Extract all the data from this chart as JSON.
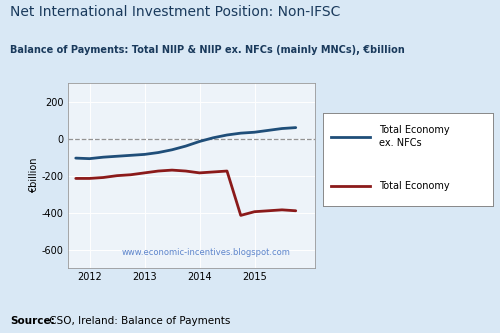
{
  "title": "Net International Investment Position: Non-IFSC",
  "subtitle": "Balance of Payments: Total NIIP & NIIP ex. NFCs (mainly MNCs), €billion",
  "ylabel": "€billion",
  "watermark": "www.economic-incentives.blogspot.com",
  "background_color": "#d9e8f5",
  "plot_bg_color": "#edf3f9",
  "ylim": [
    -700,
    300
  ],
  "yticks": [
    -600,
    -400,
    -200,
    0,
    200
  ],
  "ex_nfcs": {
    "x": [
      2011.75,
      2012.0,
      2012.25,
      2012.5,
      2012.75,
      2013.0,
      2013.25,
      2013.5,
      2013.75,
      2014.0,
      2014.25,
      2014.5,
      2014.75,
      2015.0,
      2015.25,
      2015.5,
      2015.75
    ],
    "y": [
      -105,
      -108,
      -100,
      -95,
      -90,
      -85,
      -75,
      -60,
      -40,
      -15,
      5,
      20,
      30,
      35,
      45,
      55,
      60
    ],
    "color": "#1f4e79",
    "label": "Total Economy\nex. NFCs",
    "linewidth": 2.0
  },
  "total": {
    "x": [
      2011.75,
      2012.0,
      2012.25,
      2012.5,
      2012.75,
      2013.0,
      2013.25,
      2013.5,
      2013.75,
      2014.0,
      2014.25,
      2014.5,
      2014.75,
      2015.0,
      2015.25,
      2015.5,
      2015.75
    ],
    "y": [
      -215,
      -215,
      -210,
      -200,
      -195,
      -185,
      -175,
      -170,
      -175,
      -185,
      -180,
      -175,
      -415,
      -395,
      -390,
      -385,
      -390
    ],
    "color": "#8b1a1a",
    "label": "Total Economy",
    "linewidth": 2.0
  },
  "xticks": [
    2012,
    2013,
    2014,
    2015
  ],
  "xlim": [
    2011.6,
    2016.1
  ],
  "title_fontsize": 10,
  "subtitle_fontsize": 7,
  "tick_fontsize": 7,
  "ylabel_fontsize": 7,
  "legend_fontsize": 7,
  "source_fontsize": 7.5,
  "watermark_fontsize": 6,
  "title_color": "#1a3a5c",
  "legend_line1_label": "Total Economy\nex. NFCs",
  "legend_line2_label": "Total Economy"
}
